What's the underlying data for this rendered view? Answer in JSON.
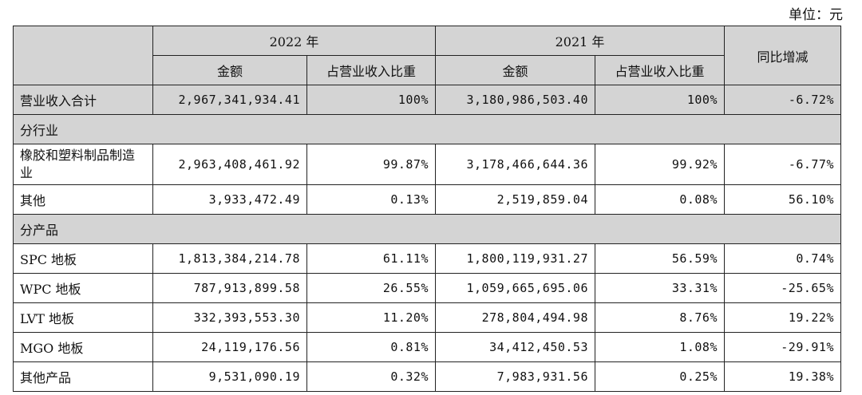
{
  "unit_label": "单位：元",
  "header": {
    "year_2022": "2022 年",
    "year_2021": "2021 年",
    "amount": "金额",
    "ratio": "占营业收入比重",
    "yoy": "同比增减"
  },
  "total": {
    "label": "营业收入合计",
    "amt_2022": "2,967,341,934.41",
    "ratio_2022": "100%",
    "amt_2021": "3,180,986,503.40",
    "ratio_2021": "100%",
    "yoy": "-6.72%"
  },
  "sections": {
    "industry": "分行业",
    "product": "分产品"
  },
  "industry_rows": [
    {
      "label": "橡胶和塑料制品制造业",
      "amt_2022": "2,963,408,461.92",
      "ratio_2022": "99.87%",
      "amt_2021": "3,178,466,644.36",
      "ratio_2021": "99.92%",
      "yoy": "-6.77%"
    },
    {
      "label": "其他",
      "amt_2022": "3,933,472.49",
      "ratio_2022": "0.13%",
      "amt_2021": "2,519,859.04",
      "ratio_2021": "0.08%",
      "yoy": "56.10%"
    }
  ],
  "product_rows": [
    {
      "label": "SPC 地板",
      "amt_2022": "1,813,384,214.78",
      "ratio_2022": "61.11%",
      "amt_2021": "1,800,119,931.27",
      "ratio_2021": "56.59%",
      "yoy": "0.74%"
    },
    {
      "label": "WPC 地板",
      "amt_2022": "787,913,899.58",
      "ratio_2022": "26.55%",
      "amt_2021": "1,059,665,695.06",
      "ratio_2021": "33.31%",
      "yoy": "-25.65%"
    },
    {
      "label": "LVT 地板",
      "amt_2022": "332,393,553.30",
      "ratio_2022": "11.20%",
      "amt_2021": "278,804,494.98",
      "ratio_2021": "8.76%",
      "yoy": "19.22%"
    },
    {
      "label": "MGO 地板",
      "amt_2022": "24,119,176.56",
      "ratio_2022": "0.81%",
      "amt_2021": "34,412,450.53",
      "ratio_2021": "1.08%",
      "yoy": "-29.91%"
    },
    {
      "label": "其他产品",
      "amt_2022": "9,531,090.19",
      "ratio_2022": "0.32%",
      "amt_2021": "7,983,931.56",
      "ratio_2021": "0.25%",
      "yoy": "19.38%"
    }
  ]
}
